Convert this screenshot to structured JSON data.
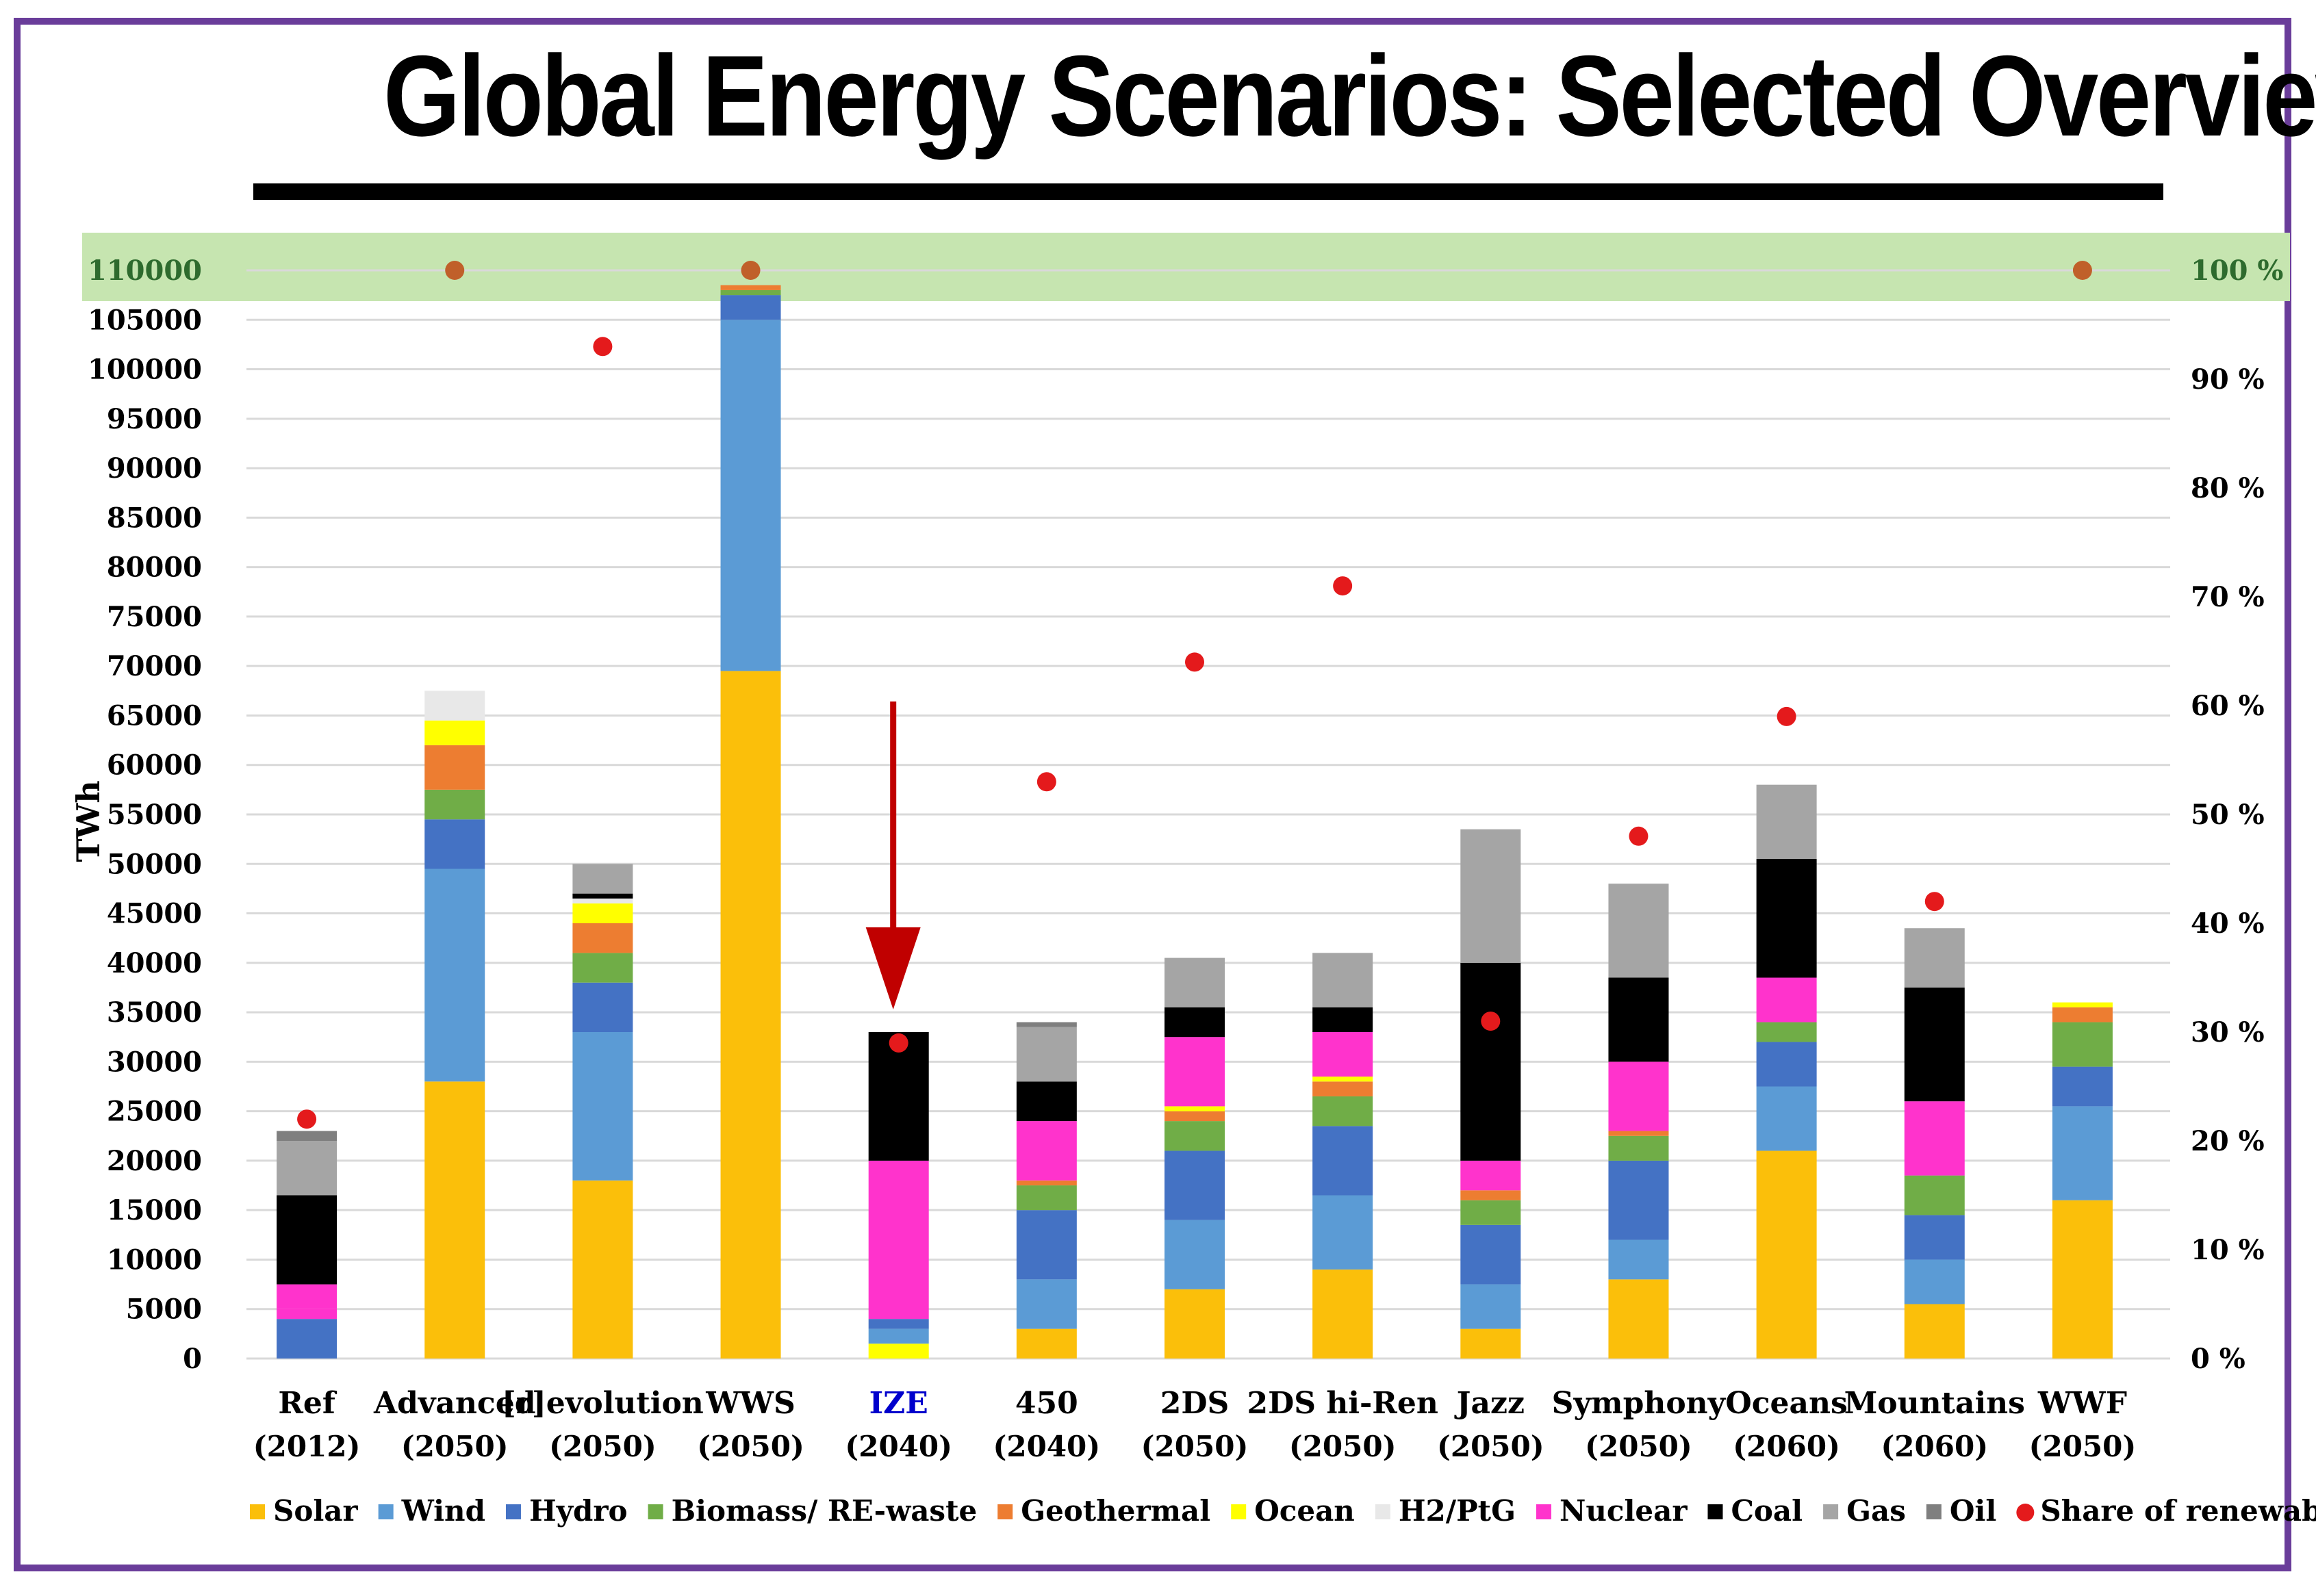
{
  "title": "Global Energy Scenarios: Selected Overview",
  "chart_data": {
    "type": "bar",
    "stacked": true,
    "ylabel": "TWh",
    "ylim": [
      0,
      110000
    ],
    "ytick_step": 5000,
    "y2lim": [
      0,
      100
    ],
    "y2ticks": [
      "0 %",
      "10 %",
      "20 %",
      "30 %",
      "40 %",
      "50 %",
      "60 %",
      "70 %",
      "80 %",
      "90 %",
      "100 %"
    ],
    "highlight_band": "110000 / 100 %",
    "grid": true,
    "legend_position": "bottom",
    "colors": {
      "Solar": "#fbbf0a",
      "Wind": "#5b9bd5",
      "Hydro": "#4472c4",
      "Biomass/ RE-waste": "#70ad47",
      "Geothermal": "#ed7d31",
      "Ocean": "#ffff00",
      "H2/PtG": "#e8e8e8",
      "Nuclear": "#ff33cc",
      "Coal": "#000000",
      "Gas": "#a5a5a5",
      "Oil": "#7f7f7f",
      "Share of renewables": "#e41a1c",
      "band": "#c6e5b0",
      "highlight_dot": "#c0602a",
      "annotation_arrow": "#c00000",
      "highlight_label": "#0000cc"
    },
    "legend": [
      "Solar",
      "Wind",
      "Hydro",
      "Biomass/ RE-waste",
      "Geothermal",
      "Ocean",
      "H2/PtG",
      "Nuclear",
      "Coal",
      "Gas",
      "Oil",
      "Share of renewables"
    ],
    "categories": [
      {
        "name": "Ref",
        "year": "(2012)",
        "highlight": false,
        "renewables_share": 22,
        "segments": [
          [
            "Hydro",
            4000
          ],
          [
            "Nuclear",
            1000
          ],
          [
            "Nuclear",
            2500
          ],
          [
            "Coal",
            9000
          ],
          [
            "Gas",
            5500
          ],
          [
            "Oil",
            1000
          ]
        ]
      },
      {
        "name": "Advanced",
        "year": "(2050)",
        "highlight": false,
        "renewables_share": 100,
        "segments": [
          [
            "Solar",
            28000
          ],
          [
            "Wind",
            21500
          ],
          [
            "Hydro",
            5000
          ],
          [
            "Biomass/ RE-waste",
            3000
          ],
          [
            "Geothermal",
            4500
          ],
          [
            "Ocean",
            2500
          ],
          [
            "H2/PtG",
            3000
          ]
        ]
      },
      {
        "name": "[r]evolution",
        "year": "(2050)",
        "highlight": false,
        "renewables_share": 93,
        "segments": [
          [
            "Solar",
            18000
          ],
          [
            "Wind",
            15000
          ],
          [
            "Hydro",
            5000
          ],
          [
            "Biomass/ RE-waste",
            3000
          ],
          [
            "Geothermal",
            3000
          ],
          [
            "Ocean",
            2000
          ],
          [
            "H2/PtG",
            500
          ],
          [
            "Coal",
            500
          ],
          [
            "Gas",
            3000
          ]
        ]
      },
      {
        "name": "WWS",
        "year": "(2050)",
        "highlight": false,
        "renewables_share": 100,
        "segments": [
          [
            "Solar",
            69500
          ],
          [
            "Wind",
            35500
          ],
          [
            "Hydro",
            2500
          ],
          [
            "Biomass/ RE-waste",
            500
          ],
          [
            "Geothermal",
            500
          ]
        ]
      },
      {
        "name": "IZE",
        "year": "(2040)",
        "highlight": true,
        "renewables_share": 29,
        "segments": [
          [
            "Ocean",
            1500
          ],
          [
            "Wind",
            1500
          ],
          [
            "Hydro",
            1000
          ],
          [
            "Nuclear",
            16000
          ],
          [
            "Coal",
            13000
          ]
        ]
      },
      {
        "name": "450",
        "year": "(2040)",
        "highlight": false,
        "renewables_share": 53,
        "segments": [
          [
            "Solar",
            3000
          ],
          [
            "Wind",
            5000
          ],
          [
            "Hydro",
            7000
          ],
          [
            "Biomass/ RE-waste",
            2500
          ],
          [
            "Geothermal",
            500
          ],
          [
            "Nuclear",
            6000
          ],
          [
            "Coal",
            4000
          ],
          [
            "Gas",
            5500
          ],
          [
            "Oil",
            500
          ]
        ]
      },
      {
        "name": "2DS",
        "year": "(2050)",
        "highlight": false,
        "renewables_share": 64,
        "segments": [
          [
            "Solar",
            7000
          ],
          [
            "Wind",
            7000
          ],
          [
            "Hydro",
            7000
          ],
          [
            "Biomass/ RE-waste",
            3000
          ],
          [
            "Geothermal",
            1000
          ],
          [
            "Ocean",
            500
          ],
          [
            "Nuclear",
            7000
          ],
          [
            "Coal",
            3000
          ],
          [
            "Gas",
            5000
          ]
        ]
      },
      {
        "name": "2DS hi-Ren",
        "year": "(2050)",
        "highlight": false,
        "renewables_share": 71,
        "segments": [
          [
            "Solar",
            9000
          ],
          [
            "Wind",
            7500
          ],
          [
            "Hydro",
            7000
          ],
          [
            "Biomass/ RE-waste",
            3000
          ],
          [
            "Geothermal",
            1500
          ],
          [
            "Ocean",
            500
          ],
          [
            "Nuclear",
            4500
          ],
          [
            "Coal",
            2500
          ],
          [
            "Gas",
            5500
          ]
        ]
      },
      {
        "name": "Jazz",
        "year": "(2050)",
        "highlight": false,
        "renewables_share": 31,
        "segments": [
          [
            "Solar",
            3000
          ],
          [
            "Wind",
            4500
          ],
          [
            "Hydro",
            6000
          ],
          [
            "Biomass/ RE-waste",
            2500
          ],
          [
            "Geothermal",
            1000
          ],
          [
            "Nuclear",
            3000
          ],
          [
            "Coal",
            20000
          ],
          [
            "Gas",
            13500
          ]
        ]
      },
      {
        "name": "Symphony",
        "year": "(2050)",
        "highlight": false,
        "renewables_share": 48,
        "segments": [
          [
            "Solar",
            8000
          ],
          [
            "Wind",
            4000
          ],
          [
            "Hydro",
            8000
          ],
          [
            "Biomass/ RE-waste",
            2500
          ],
          [
            "Geothermal",
            500
          ],
          [
            "Nuclear",
            7000
          ],
          [
            "Coal",
            8500
          ],
          [
            "Gas",
            9500
          ]
        ]
      },
      {
        "name": "Oceans",
        "year": "(2060)",
        "highlight": false,
        "renewables_share": 59,
        "segments": [
          [
            "Solar",
            21000
          ],
          [
            "Wind",
            6500
          ],
          [
            "Hydro",
            4500
          ],
          [
            "Biomass/ RE-waste",
            2000
          ],
          [
            "Nuclear",
            4500
          ],
          [
            "Coal",
            12000
          ],
          [
            "Gas",
            7500
          ]
        ]
      },
      {
        "name": "Mountains",
        "year": "(2060)",
        "highlight": false,
        "renewables_share": 42,
        "segments": [
          [
            "Solar",
            5500
          ],
          [
            "Wind",
            4500
          ],
          [
            "Hydro",
            4500
          ],
          [
            "Biomass/ RE-waste",
            4000
          ],
          [
            "Nuclear",
            7500
          ],
          [
            "Coal",
            11500
          ],
          [
            "Gas",
            6000
          ]
        ]
      },
      {
        "name": "WWF",
        "year": "(2050)",
        "highlight": false,
        "renewables_share": 100,
        "segments": [
          [
            "Solar",
            16000
          ],
          [
            "Wind",
            9500
          ],
          [
            "Hydro",
            4000
          ],
          [
            "Biomass/ RE-waste",
            4500
          ],
          [
            "Geothermal",
            1500
          ],
          [
            "Ocean",
            500
          ]
        ]
      }
    ]
  }
}
